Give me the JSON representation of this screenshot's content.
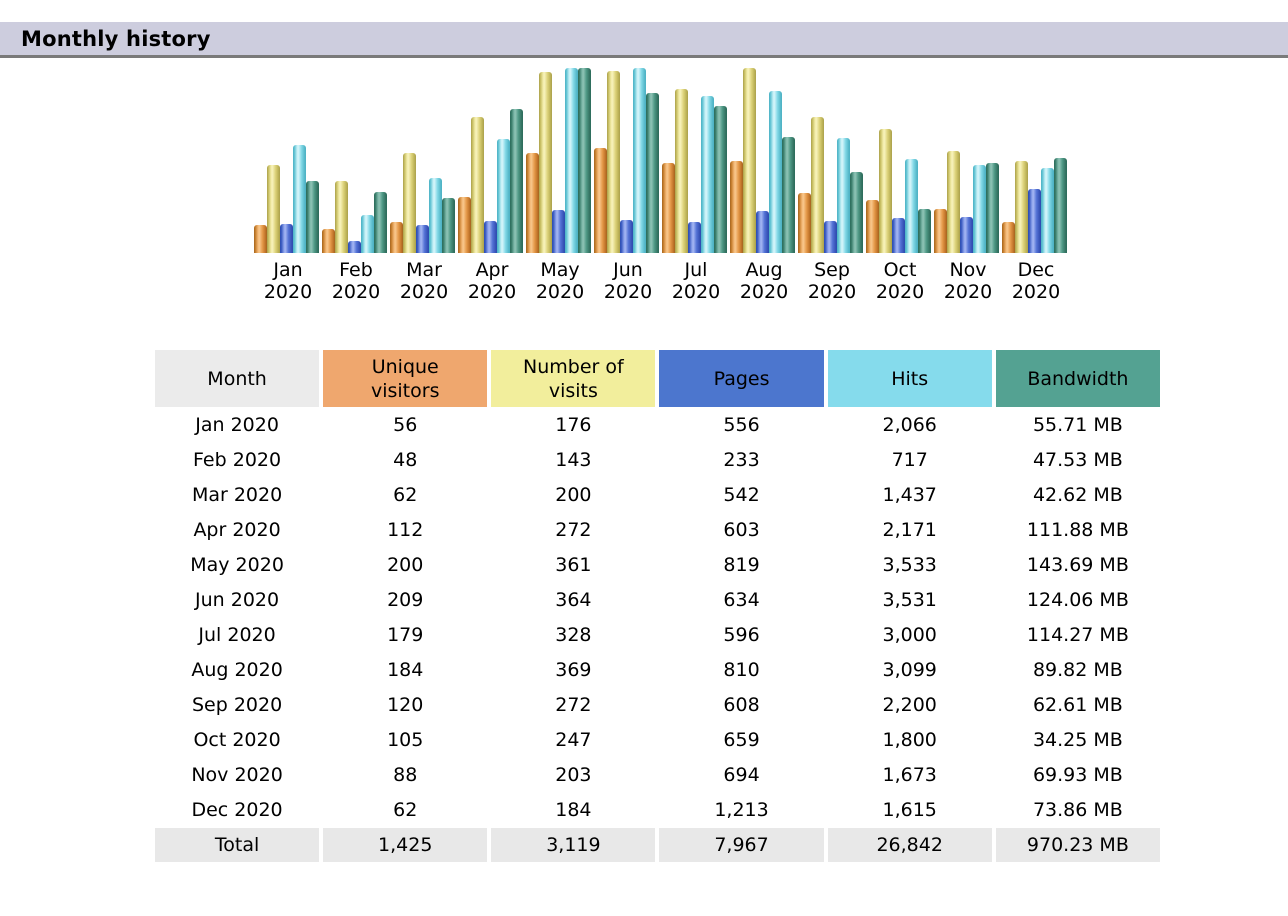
{
  "header": {
    "title": "Monthly history"
  },
  "chart_data": {
    "type": "bar",
    "title": "Monthly history",
    "categories": [
      "Jan 2020",
      "Feb 2020",
      "Mar 2020",
      "Apr 2020",
      "May 2020",
      "Jun 2020",
      "Jul 2020",
      "Aug 2020",
      "Sep 2020",
      "Oct 2020",
      "Nov 2020",
      "Dec 2020"
    ],
    "series": [
      {
        "name": "Unique visitors",
        "key": "visitors",
        "scale_group": "visits",
        "color": "#efa76e",
        "values": [
          56,
          48,
          62,
          112,
          200,
          209,
          179,
          184,
          120,
          105,
          88,
          62
        ]
      },
      {
        "name": "Number of visits",
        "key": "visits",
        "scale_group": "visits",
        "color": "#f2ee9c",
        "values": [
          176,
          143,
          200,
          272,
          361,
          364,
          328,
          369,
          272,
          247,
          203,
          184
        ]
      },
      {
        "name": "Pages",
        "key": "pages",
        "scale_group": "hits",
        "color": "#4c76ce",
        "values": [
          556,
          233,
          542,
          603,
          819,
          634,
          596,
          810,
          608,
          659,
          694,
          1213
        ]
      },
      {
        "name": "Hits",
        "key": "hits",
        "scale_group": "hits",
        "color": "#85dbec",
        "values": [
          2066,
          717,
          1437,
          2171,
          3533,
          3531,
          3000,
          3099,
          2200,
          1800,
          1673,
          1615
        ]
      },
      {
        "name": "Bandwidth (MB)",
        "key": "bandwidth",
        "scale_group": "bandwidth",
        "color": "#54a292",
        "values": [
          55.71,
          47.53,
          42.62,
          111.88,
          143.69,
          124.06,
          114.27,
          89.82,
          62.61,
          34.25,
          69.93,
          73.86
        ]
      }
    ],
    "xlabel": "Month",
    "ylabel": "",
    "legend_position": "none",
    "grid": false,
    "scaling_note": "Each scale_group is normalized independently to the same maximum bar height"
  },
  "table": {
    "columns": [
      {
        "key": "month",
        "label": "Month",
        "color": "#ebebeb"
      },
      {
        "key": "visitors",
        "label": "Unique\nvisitors",
        "color": "#efa76e"
      },
      {
        "key": "visits",
        "label": "Number of\nvisits",
        "color": "#f2ee9c"
      },
      {
        "key": "pages",
        "label": "Pages",
        "color": "#4c76ce"
      },
      {
        "key": "hits",
        "label": "Hits",
        "color": "#85dbec"
      },
      {
        "key": "bandwidth",
        "label": "Bandwidth",
        "color": "#54a292"
      }
    ],
    "rows": [
      [
        "Jan 2020",
        "56",
        "176",
        "556",
        "2,066",
        "55.71 MB"
      ],
      [
        "Feb 2020",
        "48",
        "143",
        "233",
        "717",
        "47.53 MB"
      ],
      [
        "Mar 2020",
        "62",
        "200",
        "542",
        "1,437",
        "42.62 MB"
      ],
      [
        "Apr 2020",
        "112",
        "272",
        "603",
        "2,171",
        "111.88 MB"
      ],
      [
        "May 2020",
        "200",
        "361",
        "819",
        "3,533",
        "143.69 MB"
      ],
      [
        "Jun 2020",
        "209",
        "364",
        "634",
        "3,531",
        "124.06 MB"
      ],
      [
        "Jul 2020",
        "179",
        "328",
        "596",
        "3,000",
        "114.27 MB"
      ],
      [
        "Aug 2020",
        "184",
        "369",
        "810",
        "3,099",
        "89.82 MB"
      ],
      [
        "Sep 2020",
        "120",
        "272",
        "608",
        "2,200",
        "62.61 MB"
      ],
      [
        "Oct 2020",
        "105",
        "247",
        "659",
        "1,800",
        "34.25 MB"
      ],
      [
        "Nov 2020",
        "88",
        "203",
        "694",
        "1,673",
        "69.93 MB"
      ],
      [
        "Dec 2020",
        "62",
        "184",
        "1,213",
        "1,615",
        "73.86 MB"
      ]
    ],
    "total_row": [
      "Total",
      "1,425",
      "3,119",
      "7,967",
      "26,842",
      "970.23 MB"
    ],
    "total_bg": "#e8e8e8"
  },
  "colors": {
    "titlebar_bg": "#cdcdde",
    "titlebar_border": "#7a7a7a",
    "page_bg": "#ffffff"
  }
}
